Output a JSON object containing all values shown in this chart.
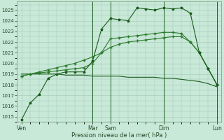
{
  "xlabel": "Pression niveau de la mer( hPa )",
  "background_color": "#c8e8d8",
  "grid_color": "#a0c8b8",
  "line_color_dark": "#1a5c1a",
  "line_color_mid": "#2a7a2a",
  "ylim": [
    1014.5,
    1025.8
  ],
  "yticks": [
    1015,
    1016,
    1017,
    1018,
    1019,
    1020,
    1021,
    1022,
    1023,
    1024,
    1025
  ],
  "xtick_labels": [
    "Ven",
    "Mar",
    "Sam",
    "Dim",
    "Lun"
  ],
  "xtick_positions": [
    0,
    8,
    10,
    16,
    22
  ],
  "vline_positions": [
    8,
    10,
    16,
    22
  ],
  "series1": [
    1014.7,
    1016.3,
    1017.1,
    1018.6,
    1019.0,
    1019.2,
    1019.2,
    1019.2,
    1020.2,
    1023.2,
    1024.2,
    1024.1,
    1024.0,
    1025.2,
    1025.1,
    1025.0,
    1025.2,
    1025.1,
    1025.2,
    1024.7,
    1021.0,
    1019.5,
    1018.0
  ],
  "series2": [
    1018.8,
    1019.0,
    1019.1,
    1019.2,
    1019.3,
    1019.4,
    1019.5,
    1019.6,
    1020.0,
    1021.0,
    1022.3,
    1022.4,
    1022.5,
    1022.6,
    1022.7,
    1022.8,
    1022.9,
    1022.9,
    1022.8,
    1022.0,
    1021.0,
    1019.5,
    1018.0
  ],
  "series3": [
    1018.8,
    1019.0,
    1019.2,
    1019.4,
    1019.6,
    1019.8,
    1020.0,
    1020.3,
    1020.6,
    1021.0,
    1021.5,
    1021.8,
    1022.0,
    1022.1,
    1022.2,
    1022.3,
    1022.4,
    1022.5,
    1022.5,
    1022.0,
    1021.0,
    1019.5,
    1018.0
  ],
  "series4": [
    1019.0,
    1019.0,
    1019.0,
    1019.0,
    1019.0,
    1018.9,
    1018.9,
    1018.9,
    1018.8,
    1018.8,
    1018.8,
    1018.8,
    1018.7,
    1018.7,
    1018.7,
    1018.7,
    1018.6,
    1018.6,
    1018.5,
    1018.4,
    1018.3,
    1018.1,
    1017.8
  ],
  "n_points": 23
}
